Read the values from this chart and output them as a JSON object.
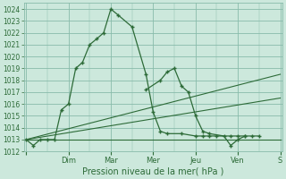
{
  "background_color": "#cce8dc",
  "grid_color": "#88bbaa",
  "line_color": "#2d6b38",
  "xlabel": "Pression niveau de la mer( hPa )",
  "ylim": [
    1012,
    1024.5
  ],
  "yticks": [
    1012,
    1013,
    1014,
    1015,
    1016,
    1017,
    1018,
    1019,
    1020,
    1021,
    1022,
    1023,
    1024
  ],
  "xlim": [
    -0.05,
    6.05
  ],
  "day_labels": [
    "",
    "Dim",
    "Mar",
    "Mer",
    "Jeu",
    "Ven",
    "S"
  ],
  "day_positions": [
    0,
    1,
    2,
    3,
    4,
    5,
    6
  ],
  "series1_x": [
    0.0,
    0.17,
    0.33,
    0.5,
    0.67,
    0.83,
    1.0,
    1.17,
    1.33,
    1.5,
    1.67,
    1.83,
    2.0,
    2.17,
    2.5,
    2.83,
    3.0,
    3.17,
    3.33,
    3.67,
    4.0,
    4.17,
    4.33,
    4.5,
    4.83,
    5.0,
    5.17
  ],
  "series1_y": [
    1013.0,
    1012.5,
    1013.0,
    1013.0,
    1013.0,
    1015.5,
    1016.0,
    1019.0,
    1019.5,
    1021.0,
    1021.5,
    1022.0,
    1024.0,
    1023.5,
    1022.5,
    1018.5,
    1015.3,
    1013.7,
    1013.5,
    1013.5,
    1013.3,
    1013.3,
    1013.3,
    1013.3,
    1013.3,
    1013.3,
    1013.3
  ],
  "series2_x": [
    0.0,
    6.0
  ],
  "series2_y": [
    1013.0,
    1013.0
  ],
  "series3_x": [
    0.0,
    6.0
  ],
  "series3_y": [
    1013.0,
    1016.5
  ],
  "series4_x": [
    0.0,
    6.0
  ],
  "series4_y": [
    1013.0,
    1018.5
  ],
  "series5_x": [
    2.83,
    3.17,
    3.33,
    3.5,
    3.67,
    3.83,
    4.0,
    4.17,
    4.33,
    4.67,
    4.83,
    5.0,
    5.17,
    5.33,
    5.5
  ],
  "series5_y": [
    1017.2,
    1018.0,
    1018.7,
    1019.0,
    1017.5,
    1017.0,
    1015.0,
    1013.7,
    1013.5,
    1013.3,
    1012.5,
    1013.0,
    1013.3,
    1013.3,
    1013.3
  ],
  "xlabel_fontsize": 7.0,
  "tick_fontsize": 5.5
}
